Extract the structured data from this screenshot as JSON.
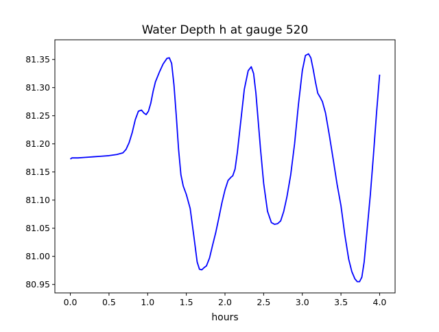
{
  "chart_data": {
    "type": "line",
    "title": "Water Depth h at gauge 520",
    "xlabel": "hours",
    "ylabel": "",
    "xlim": [
      -0.2,
      4.2
    ],
    "ylim": [
      80.935,
      81.385
    ],
    "xticks": [
      0.0,
      0.5,
      1.0,
      1.5,
      2.0,
      2.5,
      3.0,
      3.5,
      4.0
    ],
    "xtick_labels": [
      "0.0",
      "0.5",
      "1.0",
      "1.5",
      "2.0",
      "2.5",
      "3.0",
      "3.5",
      "4.0"
    ],
    "yticks": [
      80.95,
      81.0,
      81.05,
      81.1,
      81.15,
      81.2,
      81.25,
      81.3,
      81.35
    ],
    "ytick_labels": [
      "80.95",
      "81.00",
      "81.05",
      "81.10",
      "81.15",
      "81.20",
      "81.25",
      "81.30",
      "81.35"
    ],
    "grid": false,
    "series": [
      {
        "color": "#0000ff",
        "x": [
          0.0,
          0.02,
          0.1,
          0.2,
          0.3,
          0.4,
          0.5,
          0.6,
          0.68,
          0.72,
          0.76,
          0.8,
          0.84,
          0.88,
          0.92,
          0.95,
          0.98,
          1.01,
          1.04,
          1.07,
          1.1,
          1.15,
          1.2,
          1.25,
          1.28,
          1.31,
          1.34,
          1.37,
          1.4,
          1.43,
          1.46,
          1.5,
          1.55,
          1.6,
          1.64,
          1.67,
          1.7,
          1.73,
          1.76,
          1.8,
          1.84,
          1.88,
          1.92,
          1.96,
          2.0,
          2.04,
          2.08,
          2.1,
          2.13,
          2.16,
          2.2,
          2.25,
          2.3,
          2.34,
          2.37,
          2.4,
          2.43,
          2.46,
          2.5,
          2.55,
          2.6,
          2.64,
          2.68,
          2.72,
          2.76,
          2.8,
          2.85,
          2.9,
          2.95,
          3.0,
          3.04,
          3.08,
          3.11,
          3.14,
          3.17,
          3.2,
          3.23,
          3.26,
          3.3,
          3.35,
          3.4,
          3.45,
          3.5,
          3.55,
          3.6,
          3.64,
          3.68,
          3.71,
          3.74,
          3.77,
          3.8,
          3.84,
          3.88,
          3.92,
          3.96,
          4.0
        ],
        "y": [
          81.173,
          81.175,
          81.175,
          81.176,
          81.177,
          81.178,
          81.179,
          81.181,
          81.184,
          81.19,
          81.202,
          81.22,
          81.243,
          81.258,
          81.26,
          81.255,
          81.252,
          81.258,
          81.272,
          81.293,
          81.31,
          81.327,
          81.342,
          81.352,
          81.353,
          81.343,
          81.305,
          81.25,
          81.19,
          81.145,
          81.125,
          81.11,
          81.085,
          81.033,
          80.99,
          80.977,
          80.976,
          80.98,
          80.983,
          80.997,
          81.02,
          81.042,
          81.068,
          81.095,
          81.118,
          81.135,
          81.141,
          81.143,
          81.155,
          81.185,
          81.235,
          81.297,
          81.33,
          81.337,
          81.325,
          81.29,
          81.24,
          81.19,
          81.13,
          81.08,
          81.06,
          81.057,
          81.058,
          81.063,
          81.08,
          81.105,
          81.145,
          81.2,
          81.27,
          81.33,
          81.357,
          81.36,
          81.353,
          81.333,
          81.31,
          81.29,
          81.283,
          81.275,
          81.255,
          81.215,
          81.172,
          81.128,
          81.09,
          81.038,
          80.995,
          80.973,
          80.96,
          80.955,
          80.955,
          80.963,
          80.99,
          81.05,
          81.11,
          81.18,
          81.255,
          81.323
        ]
      }
    ]
  }
}
